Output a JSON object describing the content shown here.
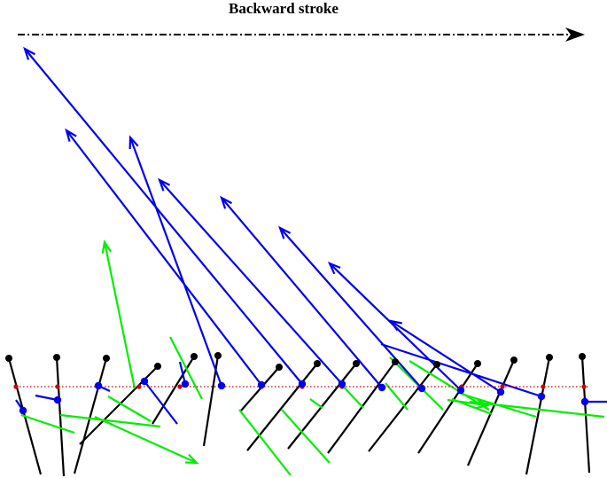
{
  "title": "Backward stroke",
  "colors": {
    "background": "#ffffff",
    "direction_arrow": "#000000",
    "legs": "#000000",
    "reference_line": "#cc0000",
    "velocity": "#0000ee",
    "force": "#00ee00"
  },
  "direction_arrow": {
    "style": "dash-dot",
    "pointing": "right"
  },
  "legend": []
}
